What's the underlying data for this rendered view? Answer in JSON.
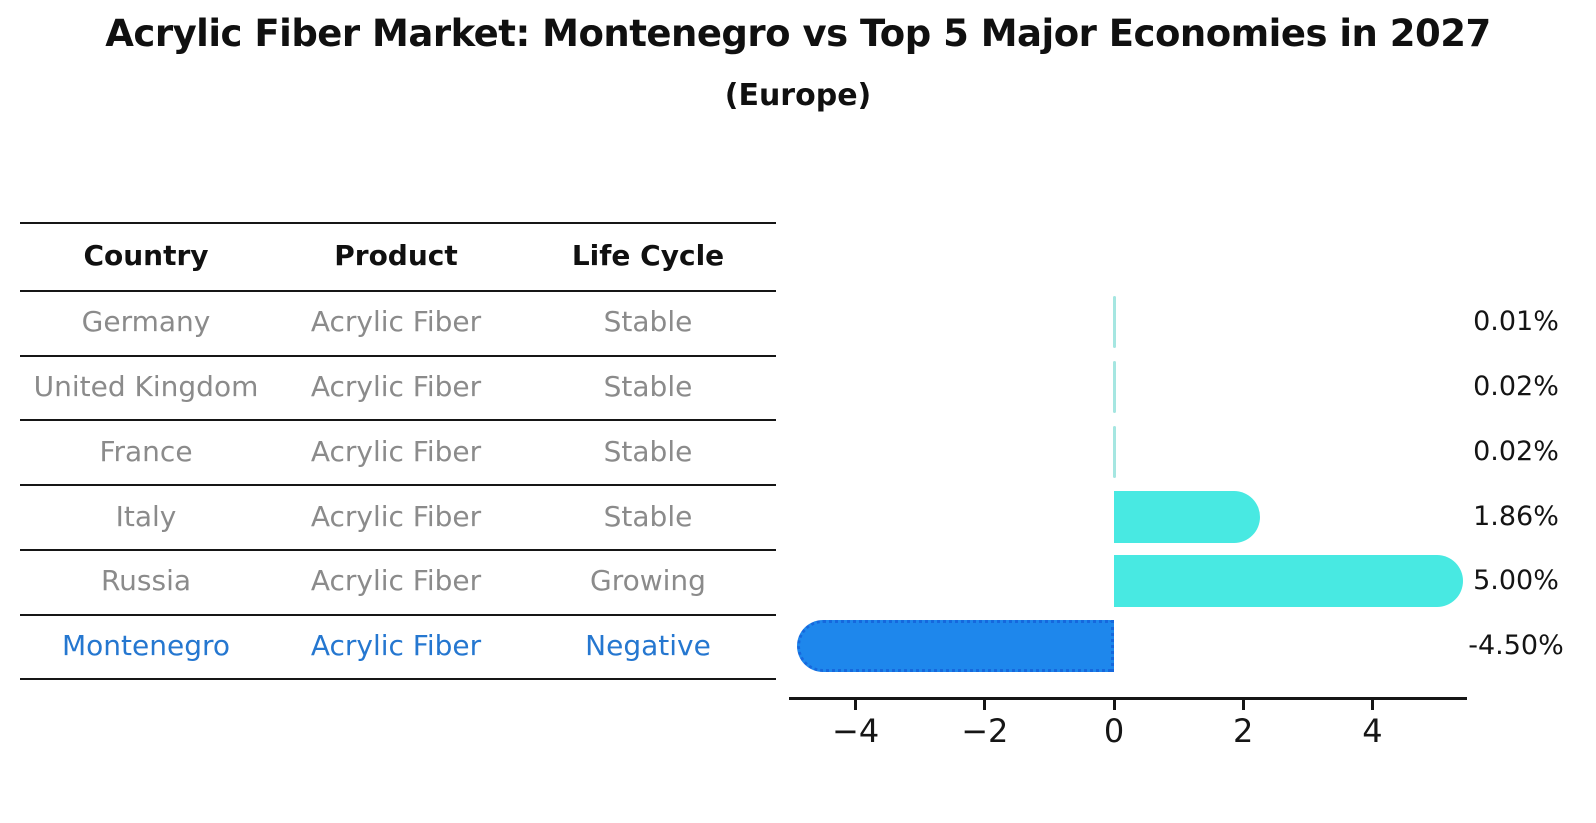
{
  "title": "Acrylic Fiber Market: Montenegro vs Top 5 Major Economies in 2027",
  "subtitle": "(Europe)",
  "table": {
    "headers": [
      "Country",
      "Product",
      "Life Cycle"
    ],
    "rows": [
      {
        "country": "Germany",
        "product": "Acrylic Fiber",
        "life_cycle": "Stable",
        "highlighted": false
      },
      {
        "country": "United Kingdom",
        "product": "Acrylic Fiber",
        "life_cycle": "Stable",
        "highlighted": false
      },
      {
        "country": "France",
        "product": "Acrylic Fiber",
        "life_cycle": "Stable",
        "highlighted": false
      },
      {
        "country": "Italy",
        "product": "Acrylic Fiber",
        "life_cycle": "Stable",
        "highlighted": false
      },
      {
        "country": "Russia",
        "product": "Acrylic Fiber",
        "life_cycle": "Growing",
        "highlighted": false
      },
      {
        "country": "Montenegro",
        "product": "Acrylic Fiber",
        "life_cycle": "Negative",
        "highlighted": true
      }
    ]
  },
  "chart_data": {
    "type": "bar",
    "orientation": "horizontal",
    "title": "Acrylic Fiber Market: Montenegro vs Top 5 Major Economies in 2027 (Europe)",
    "xlabel": "",
    "ylabel": "",
    "categories": [
      "Germany",
      "United Kingdom",
      "France",
      "Italy",
      "Russia",
      "Montenegro"
    ],
    "values": [
      0.01,
      0.02,
      0.02,
      1.86,
      5.0,
      -4.5
    ],
    "value_labels": [
      "0.01%",
      "0.02%",
      "0.02%",
      "1.86%",
      "5.00%",
      "-4.50%"
    ],
    "x_ticks": [
      -4,
      -2,
      0,
      2,
      4
    ],
    "x_tick_labels": [
      "−4",
      "−2",
      "0",
      "2",
      "4"
    ],
    "xlim": [
      -5.05,
      5.45
    ],
    "grid": false,
    "legend": false
  },
  "colors": {
    "positive_bar": "#48e9e2",
    "tiny_bar": "#a5e6e1",
    "negative_bar": "#1e87ec",
    "negative_bar_edge": "#1668dd",
    "highlight_text": "#2577d0",
    "muted_text": "#8b8b8b",
    "text": "#101010",
    "axis": "#161616"
  }
}
